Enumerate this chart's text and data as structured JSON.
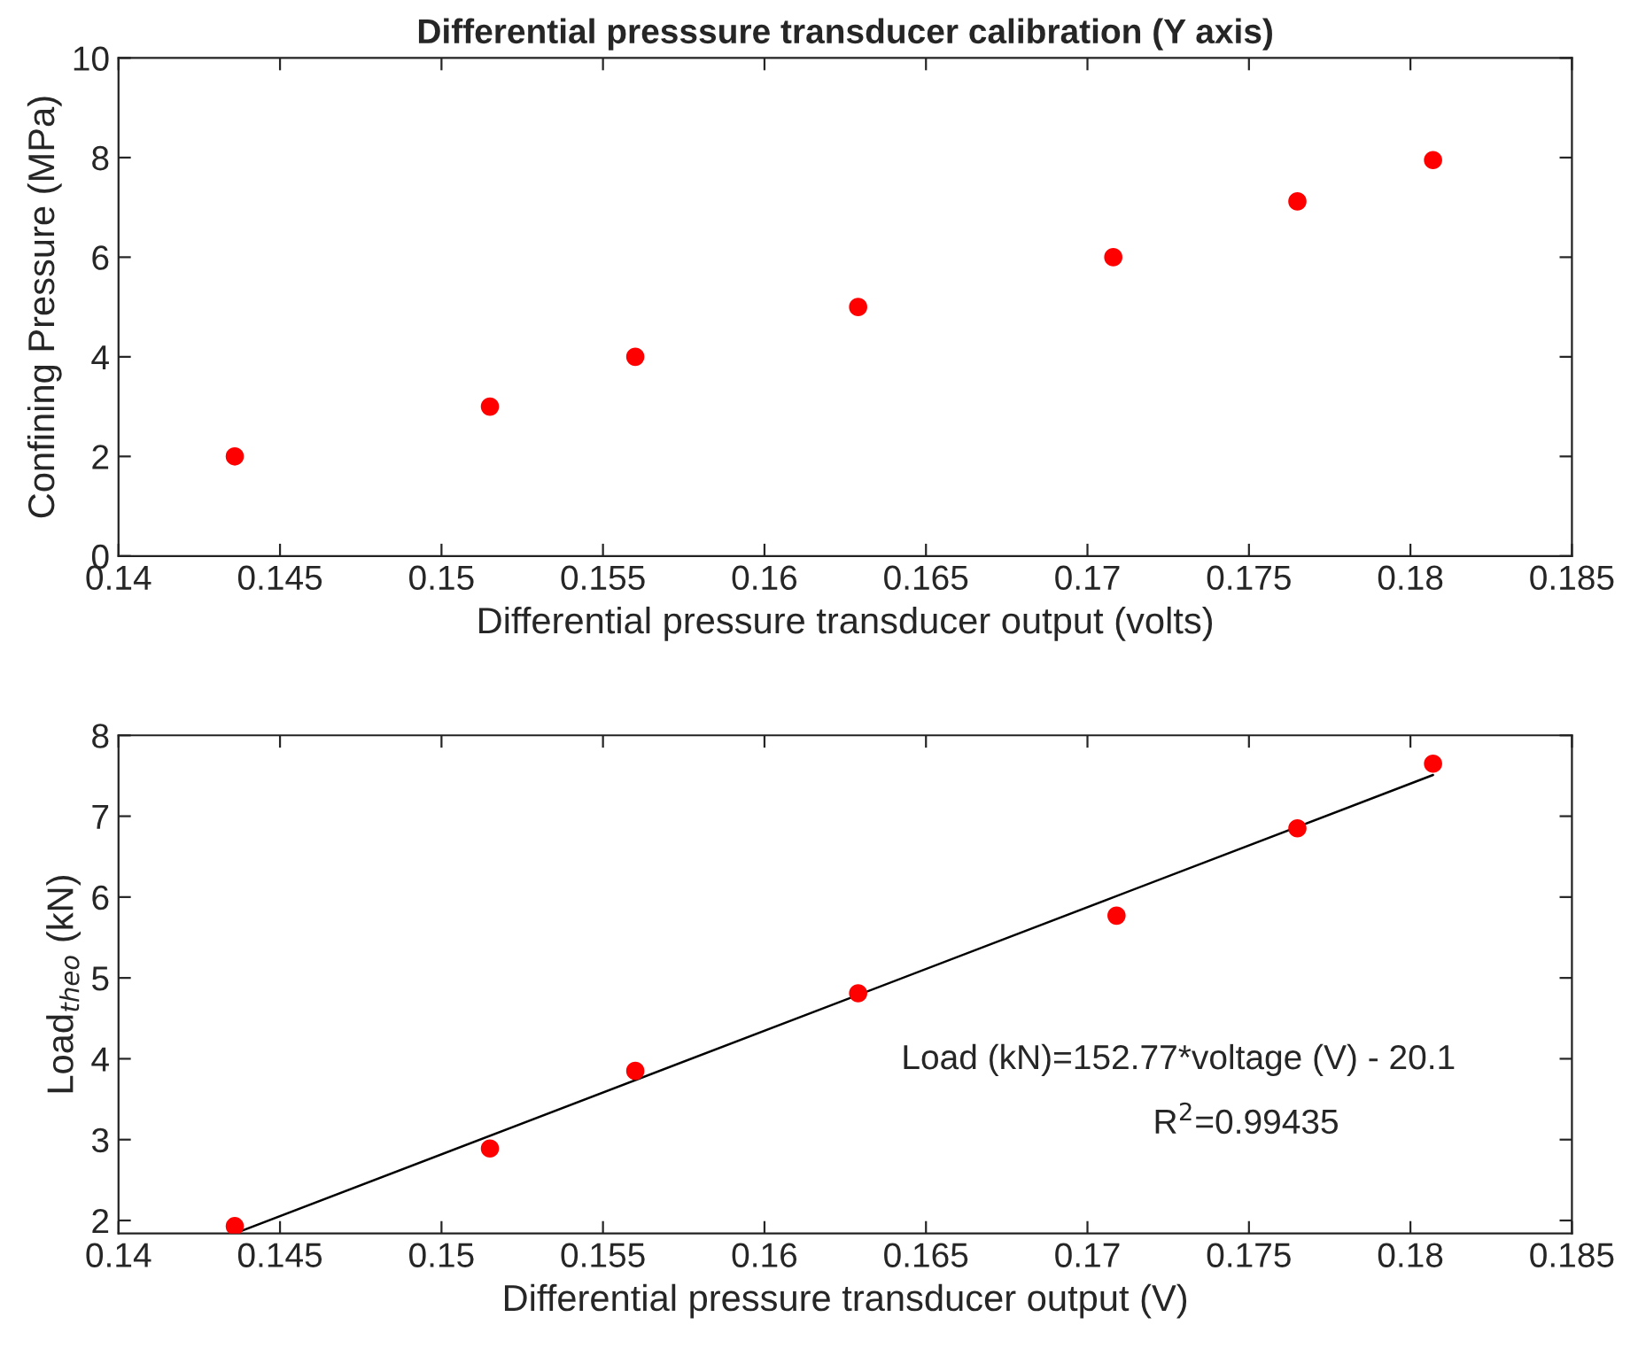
{
  "chart_data": [
    {
      "type": "scatter",
      "title": "Differential presssure transducer calibration (Y axis)",
      "xlabel": "Differential pressure transducer output (volts)",
      "ylabel": "Confining Pressure (MPa)",
      "x": [
        0.1436,
        0.1515,
        0.156,
        0.1629,
        0.1708,
        0.1765,
        0.1807
      ],
      "series": [
        {
          "color": "#ff0000",
          "values": [
            2,
            3,
            4,
            5,
            6,
            7.12,
            7.95
          ]
        }
      ],
      "xlim": [
        0.14,
        0.185
      ],
      "xticks": [
        0.14,
        0.145,
        0.15,
        0.155,
        0.16,
        0.165,
        0.17,
        0.175,
        0.18,
        0.185
      ],
      "ylim": [
        0,
        10
      ],
      "yticks": [
        0,
        2,
        4,
        6,
        8,
        10
      ],
      "marker": "circle",
      "grid": false,
      "legend": false
    },
    {
      "type": "scatter",
      "xlabel": "Differential pressure transducer output (V)",
      "ylabel": "Load$_{theo}$ (kN)",
      "x": [
        0.1436,
        0.1515,
        0.156,
        0.1629,
        0.1709,
        0.1765,
        0.1807
      ],
      "series": [
        {
          "color": "#ff0000",
          "values": [
            1.93,
            2.89,
            3.85,
            4.81,
            5.77,
            6.85,
            7.65
          ]
        },
        {
          "type": "line",
          "color": "#000000",
          "marker": "none",
          "x": [
            0.1436,
            0.1807
          ],
          "values": [
            1.84,
            7.51
          ]
        }
      ],
      "xlim": [
        0.14,
        0.185
      ],
      "xticks": [
        0.14,
        0.145,
        0.15,
        0.155,
        0.16,
        0.165,
        0.17,
        0.175,
        0.18,
        0.185
      ],
      "ylim": [
        1.84,
        8
      ],
      "yticks": [
        2,
        3,
        4,
        5,
        6,
        7,
        8
      ],
      "marker": "circle",
      "grid": false,
      "legend": false,
      "annotations": [
        "Load (kN)=152.77*voltage (V) - 20.1",
        "R$^{2}$=0.99435"
      ]
    }
  ]
}
